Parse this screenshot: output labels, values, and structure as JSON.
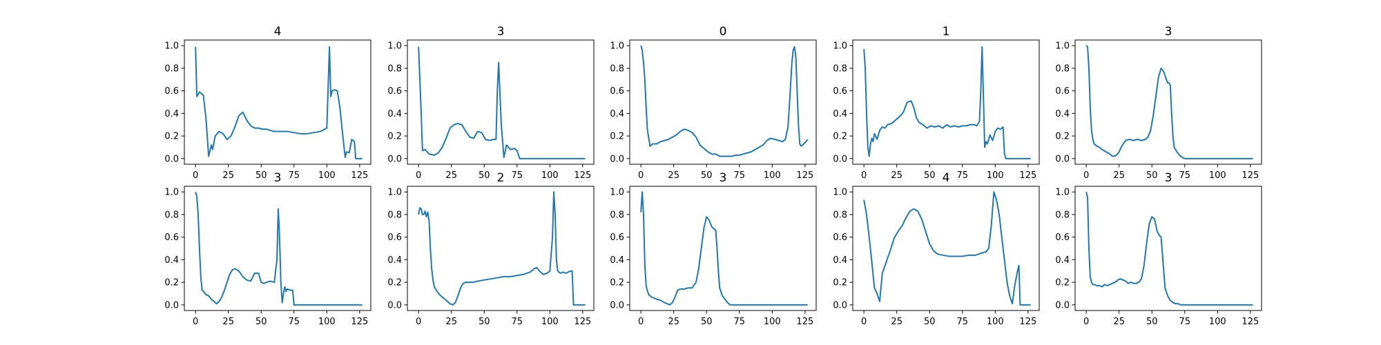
{
  "chart_data": [
    {
      "type": "line",
      "title": "4",
      "xlim": [
        -8.5,
        133.5
      ],
      "ylim": [
        -0.05,
        1.05
      ],
      "xticks": [
        0,
        25,
        50,
        75,
        100,
        125
      ],
      "xticklabels": [
        "0",
        "25",
        "50",
        "75",
        "100",
        "125"
      ],
      "yticks": [
        0.0,
        0.2,
        0.4,
        0.6,
        0.8,
        1.0
      ],
      "yticklabels": [
        "0.0",
        "0.2",
        "0.4",
        "0.6",
        "0.8",
        "1.0"
      ],
      "color": "#1f77b4",
      "x": [
        0,
        1,
        3,
        6,
        8,
        10,
        12,
        13,
        15,
        18,
        21,
        24,
        27,
        30,
        33,
        36,
        39,
        42,
        45,
        48,
        51,
        54,
        57,
        60,
        65,
        70,
        75,
        80,
        85,
        90,
        95,
        100,
        102,
        103,
        104,
        106,
        108,
        110,
        112,
        114,
        115,
        117,
        119,
        121,
        122,
        124,
        127
      ],
      "y": [
        0.99,
        0.55,
        0.59,
        0.56,
        0.35,
        0.02,
        0.12,
        0.08,
        0.2,
        0.24,
        0.22,
        0.17,
        0.2,
        0.28,
        0.38,
        0.41,
        0.34,
        0.29,
        0.27,
        0.27,
        0.26,
        0.26,
        0.25,
        0.24,
        0.24,
        0.24,
        0.23,
        0.22,
        0.22,
        0.23,
        0.24,
        0.27,
        0.99,
        0.55,
        0.6,
        0.61,
        0.6,
        0.45,
        0.22,
        0.01,
        0.06,
        0.05,
        0.17,
        0.15,
        0.0,
        0.0,
        0.0
      ]
    },
    {
      "type": "line",
      "title": "3",
      "xlim": [
        -8.5,
        133.5
      ],
      "ylim": [
        -0.05,
        1.05
      ],
      "xticks": [
        0,
        25,
        50,
        75,
        100,
        125
      ],
      "xticklabels": [
        "0",
        "25",
        "50",
        "75",
        "100",
        "125"
      ],
      "yticks": [
        0.0,
        0.2,
        0.4,
        0.6,
        0.8,
        1.0
      ],
      "yticklabels": [
        "0.0",
        "0.2",
        "0.4",
        "0.6",
        "0.8",
        "1.0"
      ],
      "color": "#1f77b4",
      "x": [
        0,
        2,
        3,
        5,
        8,
        12,
        15,
        18,
        21,
        24,
        27,
        30,
        33,
        36,
        39,
        42,
        45,
        48,
        51,
        54,
        57,
        59,
        60,
        61,
        63,
        65,
        67,
        70,
        73,
        75,
        77,
        127
      ],
      "y": [
        0.99,
        0.4,
        0.07,
        0.08,
        0.04,
        0.03,
        0.05,
        0.1,
        0.18,
        0.27,
        0.3,
        0.31,
        0.3,
        0.24,
        0.19,
        0.18,
        0.24,
        0.23,
        0.17,
        0.16,
        0.17,
        0.17,
        0.6,
        0.85,
        0.3,
        0.01,
        0.12,
        0.08,
        0.09,
        0.07,
        0.0,
        0.0
      ]
    },
    {
      "type": "line",
      "title": "0",
      "xlim": [
        -8.5,
        133.5
      ],
      "ylim": [
        -0.05,
        1.05
      ],
      "xticks": [
        0,
        25,
        50,
        75,
        100,
        125
      ],
      "xticklabels": [
        "0",
        "25",
        "50",
        "75",
        "100",
        "125"
      ],
      "yticks": [
        0.0,
        0.2,
        0.4,
        0.6,
        0.8,
        1.0
      ],
      "yticklabels": [
        "0.0",
        "0.2",
        "0.4",
        "0.6",
        "0.8",
        "1.0"
      ],
      "color": "#1f77b4",
      "x": [
        0,
        1,
        2,
        3,
        4,
        5,
        7,
        9,
        12,
        15,
        18,
        21,
        24,
        27,
        30,
        33,
        36,
        39,
        42,
        45,
        48,
        51,
        54,
        57,
        60,
        63,
        66,
        69,
        72,
        75,
        78,
        81,
        84,
        87,
        90,
        93,
        96,
        99,
        102,
        105,
        108,
        110,
        112,
        113,
        114,
        115,
        116,
        117,
        118,
        119,
        120,
        121,
        122,
        123,
        125,
        127
      ],
      "y": [
        1.0,
        0.96,
        0.85,
        0.7,
        0.45,
        0.25,
        0.11,
        0.13,
        0.13,
        0.15,
        0.16,
        0.17,
        0.19,
        0.21,
        0.24,
        0.26,
        0.25,
        0.23,
        0.19,
        0.12,
        0.09,
        0.06,
        0.04,
        0.04,
        0.02,
        0.02,
        0.02,
        0.02,
        0.03,
        0.03,
        0.04,
        0.05,
        0.06,
        0.08,
        0.1,
        0.12,
        0.16,
        0.18,
        0.17,
        0.16,
        0.15,
        0.17,
        0.28,
        0.45,
        0.65,
        0.85,
        0.96,
        0.99,
        0.9,
        0.6,
        0.3,
        0.13,
        0.11,
        0.12,
        0.14,
        0.17
      ]
    },
    {
      "type": "line",
      "title": "1",
      "xlim": [
        -8.5,
        133.5
      ],
      "ylim": [
        -0.05,
        1.05
      ],
      "xticks": [
        0,
        25,
        50,
        75,
        100,
        125
      ],
      "xticklabels": [
        "0",
        "25",
        "50",
        "75",
        "100",
        "125"
      ],
      "yticks": [
        0.0,
        0.2,
        0.4,
        0.6,
        0.8,
        1.0
      ],
      "yticklabels": [
        "0.0",
        "0.2",
        "0.4",
        "0.6",
        "0.8",
        "1.0"
      ],
      "color": "#1f77b4",
      "x": [
        0,
        1,
        2,
        3,
        4,
        5,
        6,
        7,
        8,
        10,
        12,
        14,
        16,
        18,
        21,
        24,
        27,
        30,
        33,
        36,
        38,
        40,
        42,
        45,
        48,
        51,
        54,
        57,
        60,
        63,
        66,
        69,
        72,
        75,
        78,
        81,
        84,
        86,
        88,
        89,
        90,
        91,
        92,
        93,
        94,
        96,
        98,
        100,
        102,
        104,
        106,
        107,
        108,
        110,
        127
      ],
      "y": [
        0.97,
        0.8,
        0.4,
        0.1,
        0.02,
        0.13,
        0.18,
        0.15,
        0.22,
        0.17,
        0.25,
        0.28,
        0.27,
        0.3,
        0.31,
        0.34,
        0.37,
        0.41,
        0.5,
        0.51,
        0.45,
        0.36,
        0.32,
        0.3,
        0.27,
        0.29,
        0.28,
        0.29,
        0.27,
        0.3,
        0.28,
        0.29,
        0.28,
        0.29,
        0.29,
        0.3,
        0.3,
        0.29,
        0.33,
        0.6,
        0.99,
        0.55,
        0.1,
        0.15,
        0.13,
        0.21,
        0.16,
        0.24,
        0.27,
        0.26,
        0.28,
        0.05,
        0.0,
        0.0,
        0.0
      ]
    },
    {
      "type": "line",
      "title": "3",
      "xlim": [
        -8.5,
        133.5
      ],
      "ylim": [
        -0.05,
        1.05
      ],
      "xticks": [
        0,
        25,
        50,
        75,
        100,
        125
      ],
      "xticklabels": [
        "0",
        "25",
        "50",
        "75",
        "100",
        "125"
      ],
      "yticks": [
        0.0,
        0.2,
        0.4,
        0.6,
        0.8,
        1.0
      ],
      "yticklabels": [
        "0.0",
        "0.2",
        "0.4",
        "0.6",
        "0.8",
        "1.0"
      ],
      "color": "#1f77b4",
      "x": [
        0,
        1,
        2,
        3,
        4,
        5,
        6,
        8,
        10,
        12,
        15,
        18,
        20,
        21,
        23,
        25,
        27,
        30,
        33,
        36,
        39,
        42,
        45,
        47,
        49,
        51,
        53,
        55,
        57,
        59,
        61,
        62,
        63,
        64,
        65,
        66,
        67,
        69,
        71,
        73,
        75,
        77,
        80,
        127
      ],
      "y": [
        1.0,
        0.99,
        0.8,
        0.45,
        0.25,
        0.17,
        0.13,
        0.11,
        0.1,
        0.08,
        0.06,
        0.04,
        0.02,
        0.02,
        0.03,
        0.06,
        0.11,
        0.16,
        0.17,
        0.16,
        0.17,
        0.16,
        0.17,
        0.19,
        0.25,
        0.38,
        0.55,
        0.72,
        0.8,
        0.77,
        0.7,
        0.67,
        0.67,
        0.65,
        0.4,
        0.2,
        0.1,
        0.06,
        0.03,
        0.01,
        0.0,
        0.0,
        0.0,
        0.0
      ]
    },
    {
      "type": "line",
      "title": "3",
      "xlim": [
        -8.5,
        133.5
      ],
      "ylim": [
        -0.05,
        1.05
      ],
      "xticks": [
        0,
        25,
        50,
        75,
        100,
        125
      ],
      "xticklabels": [
        "0",
        "25",
        "50",
        "75",
        "100",
        "125"
      ],
      "yticks": [
        0.0,
        0.2,
        0.4,
        0.6,
        0.8,
        1.0
      ],
      "yticklabels": [
        "0.0",
        "0.2",
        "0.4",
        "0.6",
        "0.8",
        "1.0"
      ],
      "color": "#1f77b4",
      "x": [
        0,
        1,
        2,
        3,
        4,
        5,
        6,
        8,
        10,
        12,
        14,
        16,
        18,
        20,
        22,
        24,
        26,
        28,
        30,
        33,
        36,
        39,
        42,
        45,
        48,
        50,
        52,
        54,
        57,
        60,
        62,
        63,
        64,
        65,
        66,
        67,
        68,
        69,
        70,
        72,
        74,
        75,
        77,
        127
      ],
      "y": [
        1.0,
        0.96,
        0.8,
        0.5,
        0.25,
        0.13,
        0.12,
        0.09,
        0.08,
        0.05,
        0.03,
        0.01,
        0.03,
        0.07,
        0.13,
        0.2,
        0.27,
        0.31,
        0.32,
        0.3,
        0.25,
        0.22,
        0.21,
        0.28,
        0.28,
        0.2,
        0.19,
        0.2,
        0.21,
        0.2,
        0.4,
        0.85,
        0.6,
        0.2,
        0.02,
        0.1,
        0.16,
        0.12,
        0.14,
        0.13,
        0.13,
        0.0,
        0.0,
        0.0
      ]
    },
    {
      "type": "line",
      "title": "2",
      "xlim": [
        -8.5,
        133.5
      ],
      "ylim": [
        -0.05,
        1.05
      ],
      "xticks": [
        0,
        25,
        50,
        75,
        100,
        125
      ],
      "xticklabels": [
        "0",
        "25",
        "50",
        "75",
        "100",
        "125"
      ],
      "yticks": [
        0.0,
        0.2,
        0.4,
        0.6,
        0.8,
        1.0
      ],
      "yticklabels": [
        "0.0",
        "0.2",
        "0.4",
        "0.6",
        "0.8",
        "1.0"
      ],
      "color": "#1f77b4",
      "x": [
        0,
        1,
        2,
        3,
        4,
        5,
        6,
        7,
        8,
        9,
        10,
        11,
        12,
        14,
        16,
        18,
        20,
        22,
        24,
        26,
        28,
        30,
        32,
        34,
        36,
        39,
        42,
        45,
        50,
        55,
        60,
        65,
        70,
        75,
        80,
        85,
        88,
        90,
        92,
        95,
        98,
        100,
        102,
        103,
        104,
        105,
        106,
        108,
        110,
        112,
        114,
        116,
        117,
        118,
        120,
        127
      ],
      "y": [
        0.8,
        0.86,
        0.85,
        0.8,
        0.8,
        0.83,
        0.78,
        0.82,
        0.75,
        0.5,
        0.32,
        0.22,
        0.16,
        0.12,
        0.09,
        0.07,
        0.05,
        0.03,
        0.01,
        0.0,
        0.02,
        0.08,
        0.15,
        0.19,
        0.2,
        0.2,
        0.2,
        0.21,
        0.22,
        0.23,
        0.24,
        0.25,
        0.25,
        0.26,
        0.27,
        0.29,
        0.32,
        0.33,
        0.3,
        0.27,
        0.28,
        0.3,
        0.6,
        1.0,
        0.8,
        0.4,
        0.3,
        0.28,
        0.29,
        0.28,
        0.29,
        0.3,
        0.3,
        0.0,
        0.0,
        0.0
      ]
    },
    {
      "type": "line",
      "title": "3",
      "xlim": [
        -8.5,
        133.5
      ],
      "ylim": [
        -0.05,
        1.05
      ],
      "xticks": [
        0,
        25,
        50,
        75,
        100,
        125
      ],
      "xticklabels": [
        "0",
        "25",
        "50",
        "75",
        "100",
        "125"
      ],
      "yticks": [
        0.0,
        0.2,
        0.4,
        0.6,
        0.8,
        1.0
      ],
      "yticklabels": [
        "0.0",
        "0.2",
        "0.4",
        "0.6",
        "0.8",
        "1.0"
      ],
      "color": "#1f77b4",
      "x": [
        0,
        1,
        2,
        3,
        4,
        5,
        6,
        8,
        10,
        12,
        15,
        18,
        20,
        22,
        24,
        26,
        28,
        30,
        33,
        36,
        39,
        42,
        44,
        46,
        48,
        50,
        52,
        54,
        56,
        57,
        58,
        59,
        60,
        62,
        64,
        66,
        68,
        70,
        127
      ],
      "y": [
        0.82,
        1.0,
        0.8,
        0.35,
        0.17,
        0.12,
        0.09,
        0.07,
        0.06,
        0.05,
        0.04,
        0.02,
        0.01,
        0.0,
        0.02,
        0.07,
        0.13,
        0.14,
        0.14,
        0.15,
        0.15,
        0.2,
        0.32,
        0.5,
        0.68,
        0.78,
        0.75,
        0.69,
        0.67,
        0.66,
        0.5,
        0.3,
        0.15,
        0.08,
        0.05,
        0.02,
        0.0,
        0.0,
        0.0
      ]
    },
    {
      "type": "line",
      "title": "4",
      "xlim": [
        -8.5,
        133.5
      ],
      "ylim": [
        -0.05,
        1.05
      ],
      "xticks": [
        0,
        25,
        50,
        75,
        100,
        125
      ],
      "xticklabels": [
        "0",
        "25",
        "50",
        "75",
        "100",
        "125"
      ],
      "yticks": [
        0.0,
        0.2,
        0.4,
        0.6,
        0.8,
        1.0
      ],
      "yticklabels": [
        "0.0",
        "0.2",
        "0.4",
        "0.6",
        "0.8",
        "1.0"
      ],
      "color": "#1f77b4",
      "x": [
        0,
        2,
        4,
        6,
        8,
        10,
        12,
        14,
        17,
        20,
        23,
        26,
        29,
        32,
        35,
        38,
        41,
        44,
        47,
        50,
        53,
        56,
        60,
        65,
        70,
        75,
        80,
        85,
        90,
        93,
        95,
        97,
        99,
        101,
        103,
        105,
        107,
        109,
        111,
        113,
        115,
        117,
        118,
        119,
        121,
        127
      ],
      "y": [
        0.93,
        0.8,
        0.6,
        0.38,
        0.15,
        0.1,
        0.03,
        0.28,
        0.38,
        0.48,
        0.59,
        0.65,
        0.7,
        0.77,
        0.83,
        0.85,
        0.83,
        0.76,
        0.65,
        0.54,
        0.48,
        0.45,
        0.44,
        0.43,
        0.43,
        0.43,
        0.44,
        0.44,
        0.46,
        0.47,
        0.5,
        0.7,
        1.0,
        0.93,
        0.8,
        0.6,
        0.4,
        0.2,
        0.08,
        0.01,
        0.18,
        0.3,
        0.35,
        0.0,
        0.0,
        0.0
      ]
    },
    {
      "type": "line",
      "title": "3",
      "xlim": [
        -8.5,
        133.5
      ],
      "ylim": [
        -0.05,
        1.05
      ],
      "xticks": [
        0,
        25,
        50,
        75,
        100,
        125
      ],
      "xticklabels": [
        "0",
        "25",
        "50",
        "75",
        "100",
        "125"
      ],
      "yticks": [
        0.0,
        0.2,
        0.4,
        0.6,
        0.8,
        1.0
      ],
      "yticklabels": [
        "0.0",
        "0.2",
        "0.4",
        "0.6",
        "0.8",
        "1.0"
      ],
      "color": "#1f77b4",
      "x": [
        0,
        1,
        2,
        3,
        4,
        5,
        6,
        8,
        10,
        12,
        14,
        16,
        18,
        20,
        22,
        24,
        26,
        28,
        30,
        32,
        34,
        36,
        38,
        40,
        42,
        44,
        46,
        48,
        50,
        52,
        54,
        55,
        56,
        57,
        58,
        59,
        60,
        62,
        64,
        66,
        68,
        70,
        72,
        75,
        127
      ],
      "y": [
        1.0,
        0.95,
        0.5,
        0.25,
        0.2,
        0.18,
        0.18,
        0.17,
        0.17,
        0.16,
        0.18,
        0.17,
        0.18,
        0.19,
        0.2,
        0.22,
        0.23,
        0.22,
        0.21,
        0.19,
        0.2,
        0.19,
        0.19,
        0.2,
        0.23,
        0.35,
        0.55,
        0.72,
        0.78,
        0.76,
        0.65,
        0.63,
        0.61,
        0.6,
        0.45,
        0.3,
        0.15,
        0.08,
        0.04,
        0.02,
        0.01,
        0.01,
        0.0,
        0.0,
        0.0
      ]
    }
  ]
}
